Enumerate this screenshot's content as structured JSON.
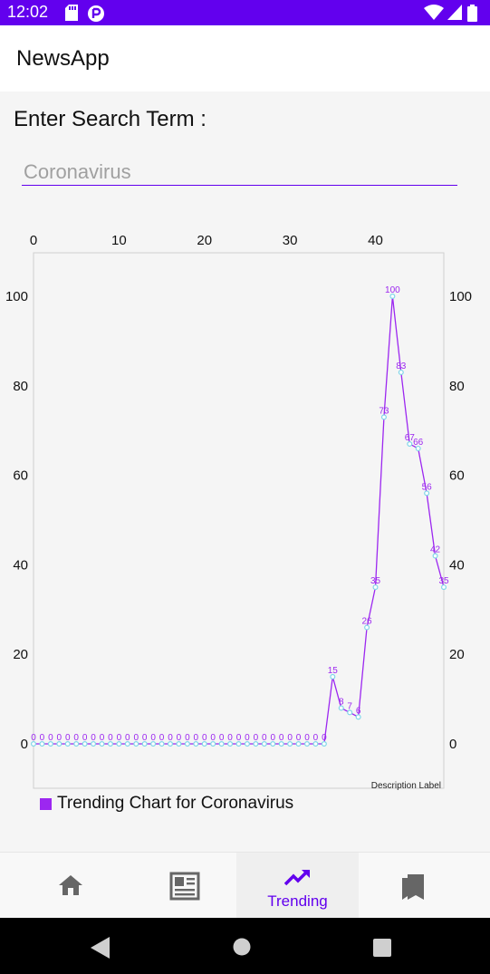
{
  "status_bar": {
    "time": "12:02",
    "icons": [
      "sd-card-icon",
      "app-notification-icon",
      "wifi-icon",
      "signal-icon",
      "battery-icon"
    ]
  },
  "app_bar": {
    "title": "NewsApp"
  },
  "search": {
    "label": "Enter Search Term :",
    "value": "",
    "placeholder": "Coronavirus"
  },
  "chart_data": {
    "type": "line",
    "x_ticks": [
      0,
      10,
      20,
      30,
      40
    ],
    "y_ticks": [
      0,
      20,
      40,
      60,
      80,
      100
    ],
    "xlim": [
      0,
      48
    ],
    "ylim": [
      0,
      100
    ],
    "values": [
      0,
      0,
      0,
      0,
      0,
      0,
      0,
      0,
      0,
      0,
      0,
      0,
      0,
      0,
      0,
      0,
      0,
      0,
      0,
      0,
      0,
      0,
      0,
      0,
      0,
      0,
      0,
      0,
      0,
      0,
      0,
      0,
      0,
      0,
      0,
      15,
      8,
      7,
      6,
      26,
      35,
      73,
      100,
      83,
      67,
      66,
      56,
      42,
      35
    ],
    "description": "Description Label",
    "legend": "Trending Chart for Coronavirus",
    "colors": {
      "line": "#9c27f0",
      "point": "#7fd6e8",
      "value_label": "#9c27f0"
    }
  },
  "bottom_nav": {
    "items": [
      {
        "name": "home",
        "icon": "home-icon",
        "label": ""
      },
      {
        "name": "news",
        "icon": "newspaper-icon",
        "label": ""
      },
      {
        "name": "trending",
        "icon": "trending-up-icon",
        "label": "Trending"
      },
      {
        "name": "saved",
        "icon": "bookmarks-icon",
        "label": ""
      }
    ]
  },
  "system_nav": {
    "icons": [
      "back-icon",
      "home-circle-icon",
      "recents-icon"
    ]
  }
}
